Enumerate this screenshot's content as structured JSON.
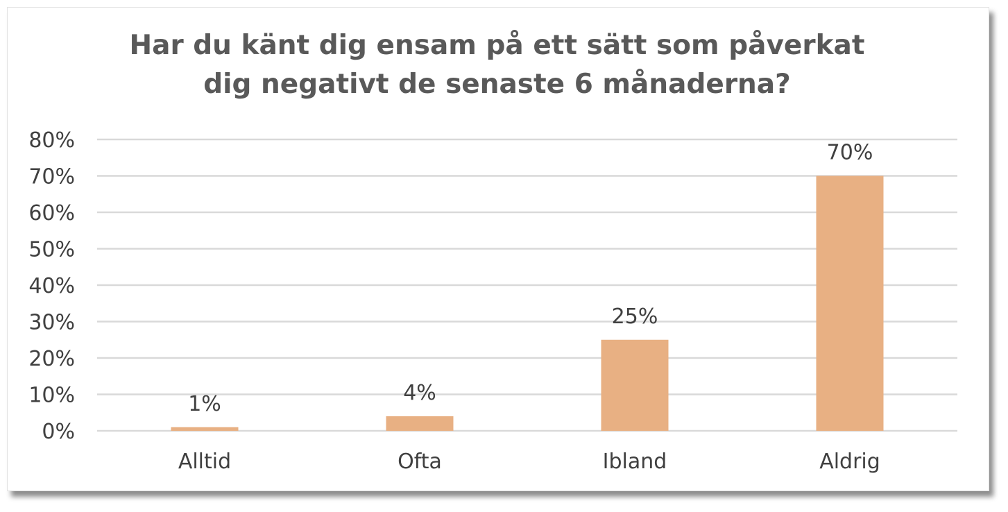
{
  "chart_data": {
    "type": "bar",
    "title_lines": [
      "Har du känt dig ensam på ett sätt som påverkat",
      "dig negativt de senaste 6 månaderna?"
    ],
    "categories": [
      "Alltid",
      "Ofta",
      "Ibland",
      "Aldrig"
    ],
    "values": [
      1,
      4,
      25,
      70
    ],
    "data_labels": [
      "1%",
      "4%",
      "25%",
      "70%"
    ],
    "xlabel": "",
    "ylabel": "",
    "ylim": [
      0,
      80
    ],
    "yticks": [
      0,
      10,
      20,
      30,
      40,
      50,
      60,
      70,
      80
    ],
    "ytick_labels": [
      "0%",
      "10%",
      "20%",
      "30%",
      "40%",
      "50%",
      "60%",
      "70%",
      "80%"
    ],
    "grid": true,
    "legend": false,
    "colors": {
      "bar": "#e8b083",
      "grid": "#d9d9d9",
      "text": "#404040",
      "title": "#595959"
    }
  }
}
